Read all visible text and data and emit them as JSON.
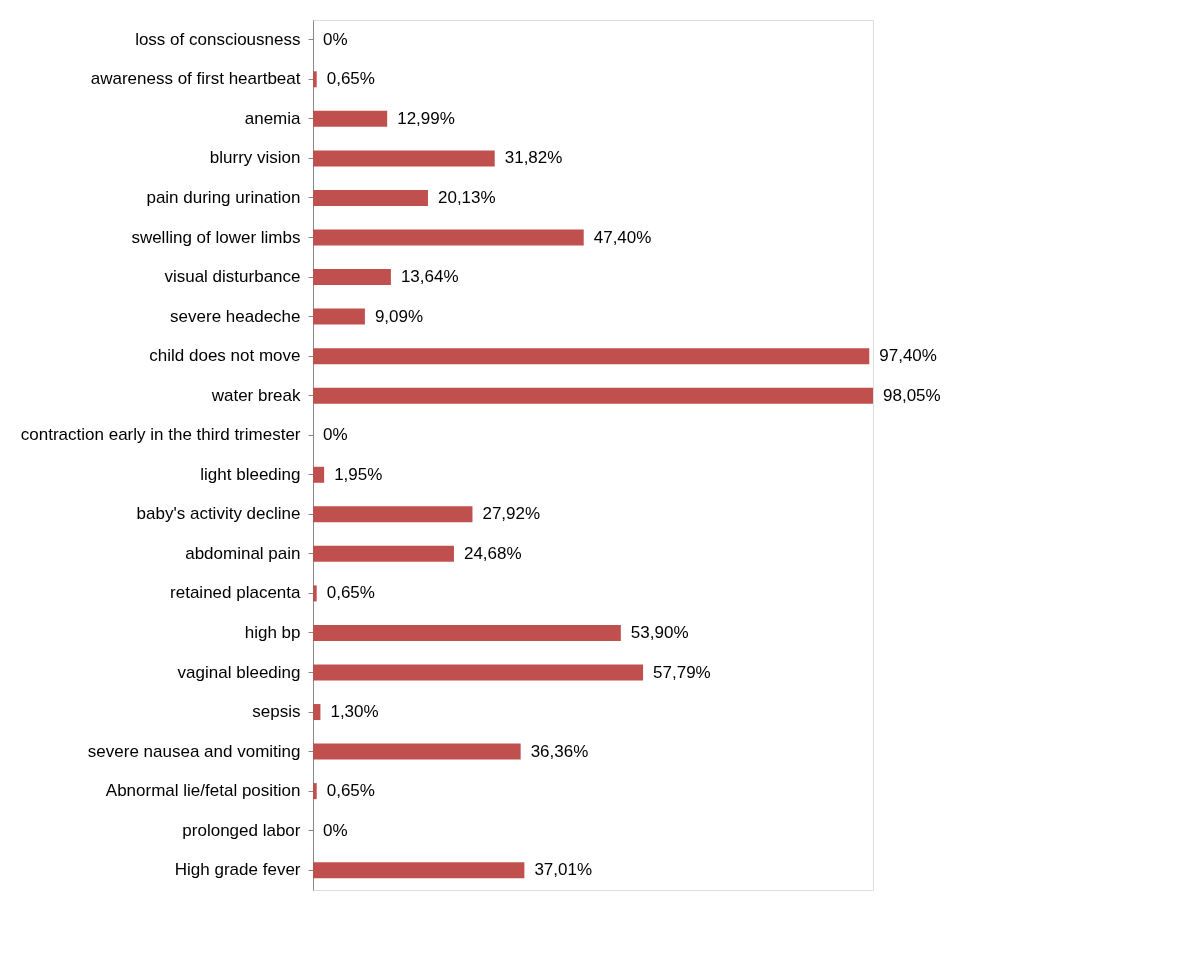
{
  "chart_data": {
    "type": "bar",
    "orientation": "horizontal",
    "categories": [
      "loss of consciousness",
      "awareness of first heartbeat",
      "anemia",
      "blurry vision",
      "pain during urination",
      "swelling of lower limbs",
      "visual disturbance",
      "severe headeche",
      "child does not move",
      "water break",
      "contraction early in the third trimester",
      "light bleeding",
      "baby's activity decline",
      "abdominal pain",
      "retained placenta",
      "high bp",
      "vaginal bleeding",
      "sepsis",
      "severe nausea and vomiting",
      "Abnormal lie/fetal position",
      "prolonged labor",
      "High grade fever"
    ],
    "values": [
      0,
      0.65,
      12.99,
      31.82,
      20.13,
      47.4,
      13.64,
      9.09,
      97.4,
      98.05,
      0,
      1.95,
      27.92,
      24.68,
      0.65,
      53.9,
      57.79,
      1.3,
      36.36,
      0.65,
      0,
      37.01
    ],
    "value_labels": [
      "0%",
      "0,65%",
      "12,99%",
      "31,82%",
      "20,13%",
      "47,40%",
      "13,64%",
      "9,09%",
      "97,40%",
      "98,05%",
      "0%",
      "1,95%",
      "27,92%",
      "24,68%",
      "0,65%",
      "53,90%",
      "57,79%",
      "1,30%",
      "36,36%",
      "0,65%",
      "0%",
      "37,01%"
    ],
    "color": "#c0504d",
    "tick_labels": "y"
  }
}
